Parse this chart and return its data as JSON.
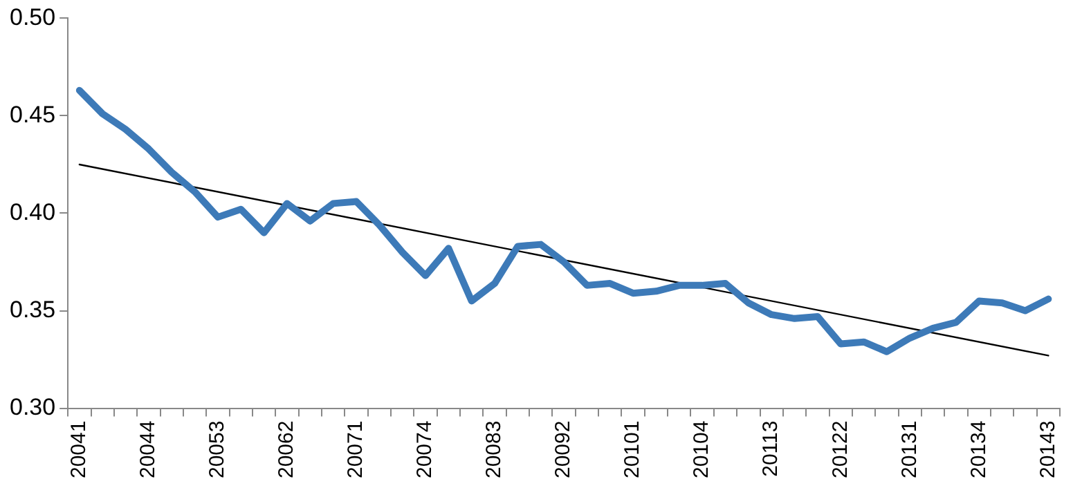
{
  "chart_data": {
    "type": "line",
    "categories": [
      "20041",
      null,
      null,
      "20044",
      null,
      null,
      "20053",
      null,
      null,
      "20062",
      null,
      null,
      "20071",
      null,
      null,
      "20074",
      null,
      null,
      "20083",
      null,
      null,
      "20092",
      null,
      null,
      "20101",
      null,
      null,
      "20104",
      null,
      null,
      "20113",
      null,
      null,
      "20122",
      null,
      null,
      "20131",
      null,
      null,
      "20134",
      null,
      null,
      "20143"
    ],
    "series": [
      {
        "color": "#3d7ab8",
        "values": [
          0.463,
          0.451,
          0.443,
          0.433,
          0.421,
          0.411,
          0.398,
          0.402,
          0.39,
          0.405,
          0.396,
          0.405,
          0.406,
          0.394,
          0.38,
          0.368,
          0.382,
          0.355,
          0.364,
          0.383,
          0.384,
          0.375,
          0.363,
          0.364,
          0.359,
          0.36,
          0.363,
          0.363,
          0.364,
          0.354,
          0.348,
          0.346,
          0.347,
          0.333,
          0.334,
          0.329,
          0.336,
          0.341,
          0.344,
          0.355,
          0.354,
          0.35,
          0.356
        ]
      },
      {
        "color": "#000000",
        "values": [
          0.425,
          null,
          null,
          null,
          null,
          null,
          null,
          null,
          null,
          null,
          null,
          null,
          null,
          null,
          null,
          null,
          null,
          null,
          null,
          null,
          null,
          null,
          null,
          null,
          null,
          null,
          null,
          null,
          null,
          null,
          null,
          null,
          null,
          null,
          null,
          null,
          null,
          null,
          null,
          null,
          null,
          null,
          0.327
        ]
      }
    ],
    "ylim": [
      0.3,
      0.5
    ],
    "yticks": [
      {
        "value": 0.3,
        "label": "0.30"
      },
      {
        "value": 0.35,
        "label": "0.35"
      },
      {
        "value": 0.4,
        "label": "0.40"
      },
      {
        "value": 0.45,
        "label": "0.45"
      },
      {
        "value": 0.5,
        "label": "0.50"
      }
    ],
    "grid": false,
    "legend": false,
    "marker": "none"
  }
}
